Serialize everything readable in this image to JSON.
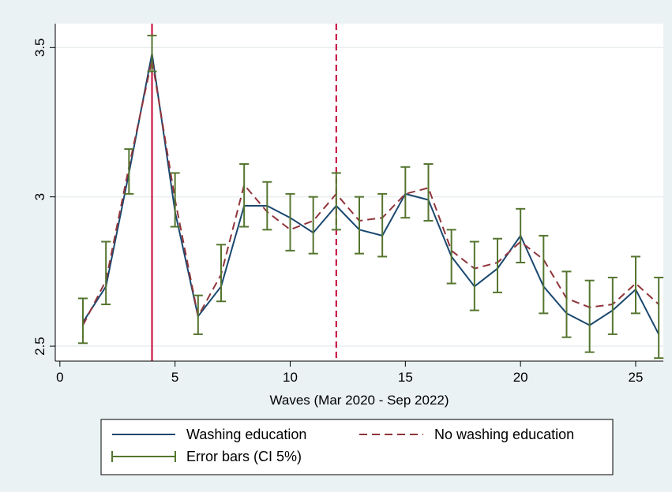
{
  "chart_data": {
    "type": "line",
    "xlabel": "Waves (Mar 2020 - Sep 2022)",
    "ylabel": "",
    "xlim": [
      -0.2,
      26.2
    ],
    "ylim": [
      2.45,
      3.58
    ],
    "x_ticks": [
      0,
      5,
      10,
      15,
      20,
      25
    ],
    "y_ticks": [
      2.5,
      3,
      3.5
    ],
    "y_tick_labels": [
      "2.5",
      "3",
      "3.5"
    ],
    "grid": "horizontal",
    "x": [
      1,
      2,
      3,
      4,
      5,
      6,
      7,
      8,
      9,
      10,
      11,
      12,
      13,
      14,
      15,
      16,
      17,
      18,
      19,
      20,
      21,
      22,
      23,
      24,
      25,
      26
    ],
    "series": [
      {
        "name": "Washing education",
        "style": "solid",
        "color": "#1a476f",
        "values": [
          2.58,
          2.7,
          3.08,
          3.48,
          2.95,
          2.6,
          2.7,
          2.97,
          2.97,
          2.93,
          2.88,
          2.97,
          2.89,
          2.87,
          3.01,
          2.99,
          2.8,
          2.7,
          2.76,
          2.87,
          2.7,
          2.61,
          2.57,
          2.62,
          2.69,
          2.54
        ]
      },
      {
        "name": "No washing education",
        "style": "dashed",
        "color": "#90353b",
        "values": [
          2.57,
          2.72,
          3.1,
          3.46,
          2.99,
          2.6,
          2.74,
          3.04,
          2.95,
          2.89,
          2.92,
          3.01,
          2.92,
          2.93,
          3.01,
          3.03,
          2.82,
          2.76,
          2.78,
          2.85,
          2.79,
          2.66,
          2.63,
          2.64,
          2.71,
          2.64
        ]
      }
    ],
    "error_bars": {
      "name": "Error bars (CI 5%)",
      "color": "#55752f",
      "lower": [
        2.51,
        2.64,
        3.01,
        3.42,
        2.9,
        2.54,
        2.65,
        2.9,
        2.89,
        2.82,
        2.81,
        2.89,
        2.81,
        2.8,
        2.93,
        2.92,
        2.71,
        2.62,
        2.68,
        2.78,
        2.61,
        2.53,
        2.48,
        2.54,
        2.61,
        2.46
      ],
      "upper": [
        2.66,
        2.85,
        3.16,
        3.54,
        3.08,
        2.67,
        2.84,
        3.11,
        3.05,
        3.01,
        3.0,
        3.08,
        3.0,
        3.01,
        3.1,
        3.11,
        2.89,
        2.85,
        2.86,
        2.96,
        2.87,
        2.75,
        2.72,
        2.73,
        2.8,
        2.73
      ]
    },
    "reference_lines": [
      {
        "x": 4,
        "style": "solid",
        "color": "#c10534"
      },
      {
        "x": 12,
        "style": "dashed",
        "color": "#c10534"
      }
    ],
    "legend": {
      "position": "bottom",
      "entries": [
        "Washing education",
        "No washing education",
        "Error bars (CI 5%)"
      ]
    }
  }
}
